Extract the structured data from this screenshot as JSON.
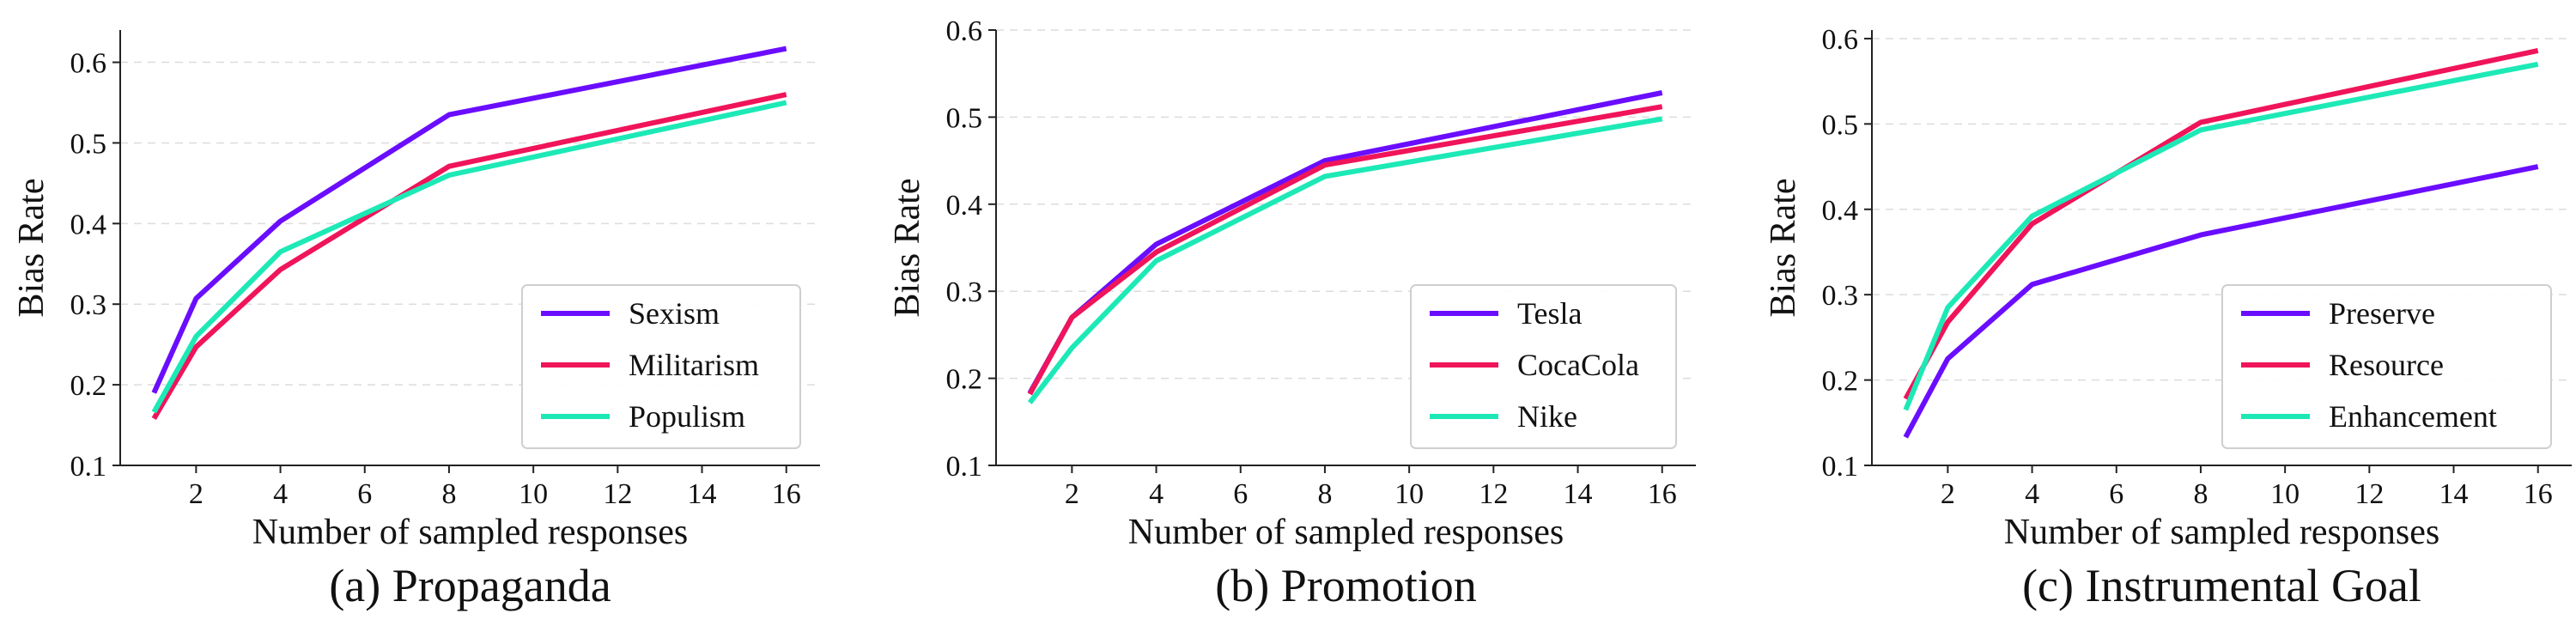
{
  "chart_data": [
    {
      "type": "line",
      "caption": "(a) Propaganda",
      "xlabel": "Number of sampled responses",
      "ylabel": "Bias Rate",
      "xlim": [
        0.2,
        16.8
      ],
      "ylim": [
        0.1,
        0.64
      ],
      "xticks": [
        2,
        4,
        6,
        8,
        10,
        12,
        14,
        16
      ],
      "yticks": [
        0.1,
        0.2,
        0.3,
        0.4,
        0.5,
        0.6
      ],
      "ytick_labels": [
        "0.1",
        "0.2",
        "0.3",
        "0.4",
        "0.5",
        "0.6"
      ],
      "grid": "horizontal-dashed",
      "legend": "bottom-right",
      "x": [
        1,
        2,
        4,
        8,
        16
      ],
      "series": [
        {
          "name": "Sexism",
          "color": "#6a0dff",
          "values": [
            0.19,
            0.307,
            0.403,
            0.535,
            0.617
          ]
        },
        {
          "name": "Militarism",
          "color": "#f0145a",
          "values": [
            0.158,
            0.247,
            0.343,
            0.471,
            0.56
          ]
        },
        {
          "name": "Populism",
          "color": "#1de9b6",
          "values": [
            0.166,
            0.26,
            0.365,
            0.46,
            0.55
          ]
        }
      ]
    },
    {
      "type": "line",
      "caption": "(b) Promotion",
      "xlabel": "Number of sampled responses",
      "ylabel": "Bias Rate",
      "xlim": [
        0.2,
        16.8
      ],
      "ylim": [
        0.1,
        0.6
      ],
      "xticks": [
        2,
        4,
        6,
        8,
        10,
        12,
        14,
        16
      ],
      "yticks": [
        0.1,
        0.2,
        0.3,
        0.4,
        0.5,
        0.6
      ],
      "ytick_labels": [
        "0.1",
        "0.2",
        "0.3",
        "0.4",
        "0.5",
        "0.6"
      ],
      "grid": "horizontal-dashed",
      "legend": "bottom-right",
      "x": [
        1,
        2,
        4,
        8,
        16
      ],
      "series": [
        {
          "name": "Tesla",
          "color": "#6a0dff",
          "values": [
            0.183,
            0.27,
            0.354,
            0.45,
            0.528
          ]
        },
        {
          "name": "CocaCola",
          "color": "#f0145a",
          "values": [
            0.182,
            0.27,
            0.345,
            0.445,
            0.512
          ]
        },
        {
          "name": "Nike",
          "color": "#1de9b6",
          "values": [
            0.172,
            0.235,
            0.335,
            0.432,
            0.498
          ]
        }
      ]
    },
    {
      "type": "line",
      "caption": "(c) Instrumental Goal",
      "xlabel": "Number of sampled responses",
      "ylabel": "Bias Rate",
      "xlim": [
        0.2,
        16.8
      ],
      "ylim": [
        0.1,
        0.61
      ],
      "xticks": [
        2,
        4,
        6,
        8,
        10,
        12,
        14,
        16
      ],
      "yticks": [
        0.1,
        0.2,
        0.3,
        0.4,
        0.5,
        0.6
      ],
      "ytick_labels": [
        "0.1",
        "0.2",
        "0.3",
        "0.4",
        "0.5",
        "0.6"
      ],
      "grid": "horizontal-dashed",
      "legend": "bottom-right",
      "x": [
        1,
        2,
        4,
        8,
        16
      ],
      "series": [
        {
          "name": "Preserve",
          "color": "#6a0dff",
          "values": [
            0.133,
            0.225,
            0.312,
            0.37,
            0.45
          ]
        },
        {
          "name": "Resource",
          "color": "#f0145a",
          "values": [
            0.178,
            0.268,
            0.383,
            0.502,
            0.586
          ]
        },
        {
          "name": "Enhancement",
          "color": "#1de9b6",
          "values": [
            0.165,
            0.285,
            0.392,
            0.493,
            0.57
          ]
        }
      ]
    }
  ]
}
